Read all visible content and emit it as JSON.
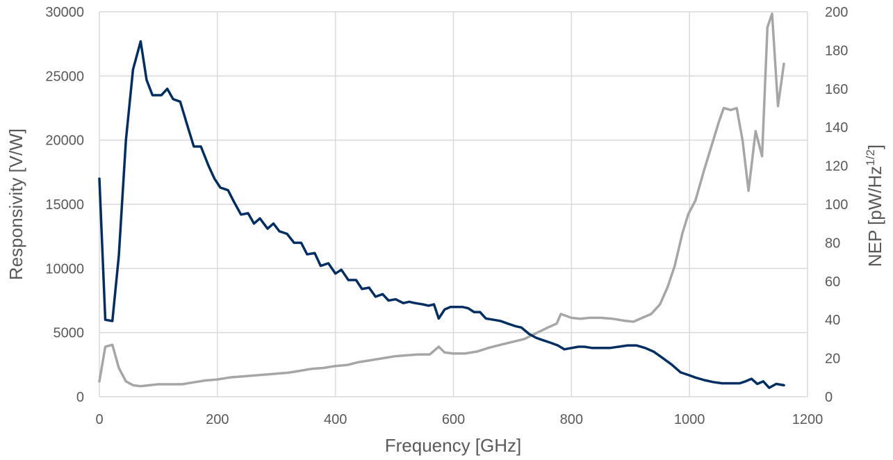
{
  "chart_data": {
    "type": "line",
    "title": "",
    "xlabel": "Frequency [GHz]",
    "ylabel_left": "Responsivity [V/W]",
    "ylabel_right_parts": [
      "NEP [pW/Hz",
      "1/2",
      "]"
    ],
    "xlim": [
      0,
      1200
    ],
    "ylim_left": [
      0,
      30000
    ],
    "ylim_right": [
      0,
      200
    ],
    "x_ticks": [
      0,
      200,
      400,
      600,
      800,
      1000,
      1200
    ],
    "y_left_ticks": [
      0,
      5000,
      10000,
      15000,
      20000,
      25000,
      30000
    ],
    "y_right_ticks": [
      0,
      20,
      40,
      60,
      80,
      100,
      120,
      140,
      160,
      180,
      200
    ],
    "grid": true,
    "legend": "none",
    "series": [
      {
        "axis": "left",
        "color": "#002d62",
        "points": [
          [
            0,
            17000
          ],
          [
            10,
            6000
          ],
          [
            22,
            5900
          ],
          [
            33,
            11000
          ],
          [
            45,
            20000
          ],
          [
            57,
            25500
          ],
          [
            70,
            27700
          ],
          [
            80,
            24700
          ],
          [
            90,
            23500
          ],
          [
            105,
            23500
          ],
          [
            115,
            24000
          ],
          [
            125,
            23200
          ],
          [
            137,
            23000
          ],
          [
            150,
            21000
          ],
          [
            160,
            19500
          ],
          [
            172,
            19500
          ],
          [
            185,
            18000
          ],
          [
            195,
            17000
          ],
          [
            205,
            16300
          ],
          [
            218,
            16100
          ],
          [
            228,
            15200
          ],
          [
            240,
            14200
          ],
          [
            252,
            14300
          ],
          [
            262,
            13500
          ],
          [
            272,
            13900
          ],
          [
            285,
            13100
          ],
          [
            295,
            13500
          ],
          [
            305,
            12900
          ],
          [
            318,
            12700
          ],
          [
            330,
            12000
          ],
          [
            342,
            12000
          ],
          [
            352,
            11100
          ],
          [
            365,
            11200
          ],
          [
            375,
            10200
          ],
          [
            388,
            10400
          ],
          [
            400,
            9600
          ],
          [
            410,
            9900
          ],
          [
            422,
            9100
          ],
          [
            435,
            9100
          ],
          [
            445,
            8400
          ],
          [
            457,
            8500
          ],
          [
            468,
            7800
          ],
          [
            480,
            8000
          ],
          [
            490,
            7500
          ],
          [
            502,
            7600
          ],
          [
            515,
            7300
          ],
          [
            525,
            7400
          ],
          [
            535,
            7300
          ],
          [
            548,
            7200
          ],
          [
            558,
            7100
          ],
          [
            567,
            7200
          ],
          [
            575,
            6100
          ],
          [
            585,
            6800
          ],
          [
            595,
            7000
          ],
          [
            605,
            7000
          ],
          [
            615,
            7000
          ],
          [
            625,
            6900
          ],
          [
            635,
            6600
          ],
          [
            645,
            6600
          ],
          [
            655,
            6100
          ],
          [
            668,
            6000
          ],
          [
            680,
            5900
          ],
          [
            692,
            5700
          ],
          [
            705,
            5500
          ],
          [
            715,
            5400
          ],
          [
            728,
            4900
          ],
          [
            740,
            4600
          ],
          [
            752,
            4400
          ],
          [
            765,
            4200
          ],
          [
            777,
            4000
          ],
          [
            788,
            3700
          ],
          [
            800,
            3800
          ],
          [
            812,
            3900
          ],
          [
            822,
            3900
          ],
          [
            835,
            3800
          ],
          [
            850,
            3800
          ],
          [
            865,
            3800
          ],
          [
            880,
            3900
          ],
          [
            895,
            4000
          ],
          [
            910,
            4000
          ],
          [
            925,
            3800
          ],
          [
            940,
            3500
          ],
          [
            955,
            3000
          ],
          [
            970,
            2500
          ],
          [
            985,
            1900
          ],
          [
            998,
            1700
          ],
          [
            1010,
            1500
          ],
          [
            1025,
            1300
          ],
          [
            1040,
            1150
          ],
          [
            1055,
            1050
          ],
          [
            1070,
            1050
          ],
          [
            1085,
            1050
          ],
          [
            1095,
            1200
          ],
          [
            1105,
            1400
          ],
          [
            1115,
            1000
          ],
          [
            1125,
            1200
          ],
          [
            1135,
            700
          ],
          [
            1147,
            1000
          ],
          [
            1160,
            900
          ]
        ]
      },
      {
        "axis": "right",
        "color": "#a6a6a6",
        "points": [
          [
            0,
            8
          ],
          [
            10,
            26
          ],
          [
            22,
            27
          ],
          [
            33,
            15
          ],
          [
            45,
            8
          ],
          [
            57,
            6
          ],
          [
            70,
            5.5
          ],
          [
            85,
            6
          ],
          [
            100,
            6.5
          ],
          [
            120,
            6.5
          ],
          [
            140,
            6.5
          ],
          [
            160,
            7.5
          ],
          [
            180,
            8.5
          ],
          [
            200,
            9
          ],
          [
            220,
            10
          ],
          [
            240,
            10.5
          ],
          [
            260,
            11
          ],
          [
            280,
            11.5
          ],
          [
            300,
            12
          ],
          [
            320,
            12.5
          ],
          [
            340,
            13.5
          ],
          [
            360,
            14.5
          ],
          [
            380,
            15
          ],
          [
            400,
            16
          ],
          [
            420,
            16.5
          ],
          [
            440,
            18
          ],
          [
            460,
            19
          ],
          [
            480,
            20
          ],
          [
            500,
            21
          ],
          [
            520,
            21.5
          ],
          [
            540,
            22
          ],
          [
            560,
            22
          ],
          [
            575,
            26
          ],
          [
            585,
            23
          ],
          [
            600,
            22.5
          ],
          [
            620,
            22.5
          ],
          [
            640,
            23.5
          ],
          [
            660,
            25.5
          ],
          [
            680,
            27
          ],
          [
            700,
            28.5
          ],
          [
            720,
            30
          ],
          [
            740,
            33
          ],
          [
            760,
            36
          ],
          [
            775,
            38
          ],
          [
            782,
            43
          ],
          [
            800,
            41
          ],
          [
            815,
            40.5
          ],
          [
            830,
            41
          ],
          [
            850,
            41
          ],
          [
            870,
            40.5
          ],
          [
            890,
            39.5
          ],
          [
            905,
            39
          ],
          [
            920,
            41
          ],
          [
            935,
            43
          ],
          [
            950,
            48
          ],
          [
            963,
            57
          ],
          [
            975,
            68
          ],
          [
            988,
            85
          ],
          [
            998,
            95
          ],
          [
            1010,
            102
          ],
          [
            1025,
            118
          ],
          [
            1040,
            133
          ],
          [
            1050,
            143
          ],
          [
            1058,
            150
          ],
          [
            1070,
            149
          ],
          [
            1080,
            150
          ],
          [
            1090,
            133
          ],
          [
            1100,
            107
          ],
          [
            1112,
            138
          ],
          [
            1123,
            125
          ],
          [
            1132,
            192
          ],
          [
            1140,
            199
          ],
          [
            1150,
            151
          ],
          [
            1160,
            173
          ]
        ]
      }
    ]
  }
}
